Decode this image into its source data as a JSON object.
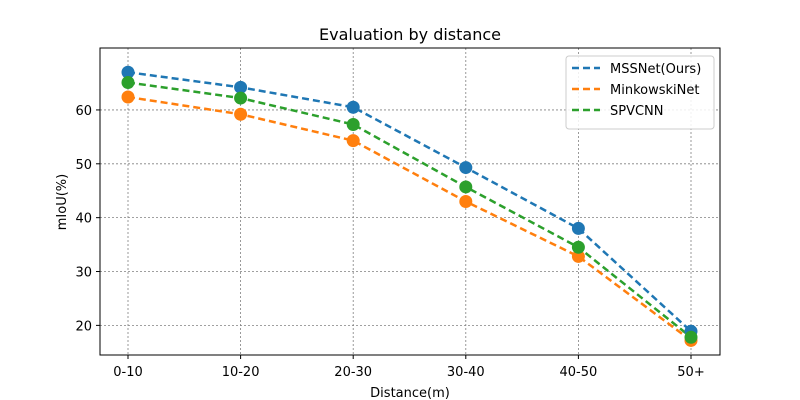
{
  "chart_data": {
    "type": "line",
    "title": "Evaluation by distance",
    "xlabel": "Distance(m)",
    "ylabel": "mIoU(%)",
    "categories": [
      "0-10",
      "10-20",
      "20-30",
      "30-40",
      "40-50",
      "50+"
    ],
    "ylim": [
      14.5,
      71.5
    ],
    "yticks": [
      20,
      30,
      40,
      50,
      60
    ],
    "grid": true,
    "legend_position": "top-right",
    "line_style": "dashed",
    "series": [
      {
        "name": "MSSNet(Ours)",
        "color": "#1f77b4",
        "values": [
          67.0,
          64.2,
          60.5,
          49.3,
          38.0,
          18.9
        ]
      },
      {
        "name": "MinkowskiNet",
        "color": "#ff7f0e",
        "values": [
          62.4,
          59.2,
          54.3,
          43.0,
          32.8,
          17.2
        ]
      },
      {
        "name": "SPVCNN",
        "color": "#2ca02c",
        "values": [
          65.1,
          62.2,
          57.3,
          45.7,
          34.5,
          17.8
        ]
      }
    ]
  }
}
